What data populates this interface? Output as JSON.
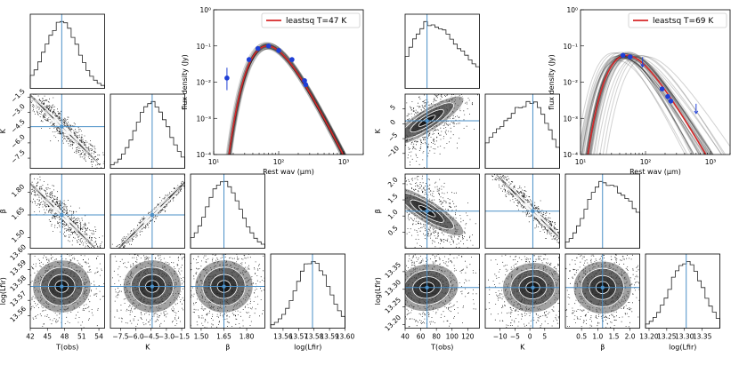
{
  "chart_data": [
    {
      "type": "corner",
      "panel": "left",
      "params": [
        "T(obs)",
        "K",
        "β",
        "log(Lfir)"
      ],
      "truths": [
        47.5,
        -4.4,
        1.65,
        13.579
      ],
      "ranges": [
        [
          42,
          55
        ],
        [
          -8.5,
          -1.2
        ],
        [
          1.43,
          1.92
        ],
        [
          13.552,
          13.6
        ]
      ],
      "ticks": [
        {
          "values": [
            42,
            45,
            48,
            51,
            54
          ],
          "labels": [
            "42",
            "45",
            "48",
            "51",
            "54"
          ]
        },
        {
          "values": [
            -7.5,
            -6.0,
            -4.5,
            -3.0,
            -1.5
          ],
          "labels": [
            "−7.5",
            "−6.0",
            "−4.5",
            "−3.0",
            "−1.5"
          ]
        },
        {
          "values": [
            1.5,
            1.65,
            1.8
          ],
          "labels": [
            "1.50",
            "1.65",
            "1.80"
          ]
        },
        {
          "values": [
            13.56,
            13.57,
            13.58,
            13.59,
            13.6
          ],
          "labels": [
            "13.56",
            "13.57",
            "13.58",
            "13.59",
            "13.60"
          ]
        }
      ],
      "correlations": {
        "1-0": -0.95,
        "2-0": -0.92,
        "2-1": 0.99,
        "3-0": 0.05,
        "3-1": 0.05,
        "3-2": 0.05
      },
      "histogram_skew": [
        0,
        0,
        0,
        0
      ]
    },
    {
      "type": "corner",
      "panel": "right",
      "params": [
        "T(obs)",
        "K",
        "β",
        "log(Lfir)"
      ],
      "truths": [
        68,
        1,
        1.15,
        13.305
      ],
      "ranges": [
        [
          40,
          135
        ],
        [
          -15,
          10
        ],
        [
          0.0,
          2.3
        ],
        [
          13.19,
          13.4
        ]
      ],
      "ticks": [
        {
          "values": [
            40,
            60,
            80,
            100,
            120
          ],
          "labels": [
            "40",
            "60",
            "80",
            "100",
            "120"
          ]
        },
        {
          "values": [
            -10,
            -5,
            0,
            5
          ],
          "labels": [
            "−10",
            "−5",
            "0",
            "5"
          ]
        },
        {
          "values": [
            0.5,
            1.0,
            1.5,
            2.0
          ],
          "labels": [
            "0.5",
            "1.0",
            "1.5",
            "2.0"
          ]
        },
        {
          "values": [
            13.2,
            13.25,
            13.3,
            13.35
          ],
          "labels": [
            "13.20",
            "13.25",
            "13.30",
            "13.35"
          ]
        }
      ],
      "ytick_overrides": {
        "1": {
          "values": [
            -10,
            -5,
            0,
            5
          ],
          "labels": [
            "−10",
            "−5",
            "0",
            "5"
          ]
        },
        "2": {
          "values": [
            0.5,
            1.0,
            1.5,
            2.0
          ],
          "labels": [
            "0.5",
            "1.0",
            "1.5",
            "2.0"
          ]
        },
        "3": {
          "values": [
            13.2,
            13.25,
            13.3,
            13.35
          ],
          "labels": [
            "13.20",
            "13.25",
            "13.30",
            "13.35"
          ]
        }
      },
      "correlations": {
        "1-0": 0.6,
        "2-0": -0.6,
        "2-1": -0.97,
        "3-0": 0.15,
        "3-1": 0.1,
        "3-2": 0.05
      },
      "histogram_skew": [
        1,
        -1,
        1,
        0
      ]
    },
    {
      "type": "line",
      "panel": "left-sed",
      "title": "",
      "xlabel": "Rest wav (μm)",
      "ylabel": "flux density (Jy)",
      "xscale": "log",
      "yscale": "log",
      "xlim": [
        10,
        2000
      ],
      "ylim": [
        0.0001,
        1
      ],
      "xticks": [
        {
          "v": 10,
          "l": "10¹"
        },
        {
          "v": 100,
          "l": "10²"
        },
        {
          "v": 1000,
          "l": "10³"
        }
      ],
      "yticks": [
        {
          "v": 0.0001,
          "l": "10⁻⁴"
        },
        {
          "v": 0.001,
          "l": "10⁻³"
        },
        {
          "v": 0.01,
          "l": "10⁻²"
        },
        {
          "v": 0.1,
          "l": "10⁻¹"
        },
        {
          "v": 1,
          "l": "10⁰"
        }
      ],
      "legend": {
        "label": "leastsq T=47 K",
        "color": "#d62728",
        "position": "top-right"
      },
      "model": {
        "T": 47,
        "beta": 1.65,
        "peak_wav": 70,
        "peak_flux": 0.1,
        "spread": 0.05
      },
      "points": [
        {
          "x": 16,
          "y": 0.013,
          "yerr_lo": 0.007,
          "yerr_hi": 0.012
        },
        {
          "x": 35,
          "y": 0.042
        },
        {
          "x": 48,
          "y": 0.085
        },
        {
          "x": 70,
          "y": 0.1
        },
        {
          "x": 100,
          "y": 0.075
        },
        {
          "x": 160,
          "y": 0.042
        },
        {
          "x": 250,
          "y": 0.011
        },
        {
          "x": 260,
          "y": 0.0085
        }
      ]
    },
    {
      "type": "line",
      "panel": "right-sed",
      "title": "",
      "xlabel": "Rest wav (μm)",
      "ylabel": "flux density (Jy)",
      "xscale": "log",
      "yscale": "log",
      "xlim": [
        10,
        2000
      ],
      "ylim": [
        0.0001,
        1
      ],
      "xticks": [
        {
          "v": 10,
          "l": "10¹"
        },
        {
          "v": 100,
          "l": "10²"
        },
        {
          "v": 1000,
          "l": "10³"
        }
      ],
      "yticks": [
        {
          "v": 0.0001,
          "l": "10⁻⁴"
        },
        {
          "v": 0.001,
          "l": "10⁻³"
        },
        {
          "v": 0.01,
          "l": "10⁻²"
        },
        {
          "v": 0.1,
          "l": "10⁻¹"
        },
        {
          "v": 1,
          "l": "10⁰"
        }
      ],
      "legend": {
        "label": "leastsq T=69 K",
        "color": "#d62728",
        "position": "top-right"
      },
      "model": {
        "T": 69,
        "beta": 1.15,
        "peak_wav": 50,
        "peak_flux": 0.055,
        "spread": 0.35
      },
      "points": [
        {
          "x": 45,
          "y": 0.055
        },
        {
          "x": 58,
          "y": 0.05
        },
        {
          "x": 90,
          "y": 0.035,
          "uplim": true
        },
        {
          "x": 180,
          "y": 0.0065
        },
        {
          "x": 220,
          "y": 0.004
        },
        {
          "x": 245,
          "y": 0.003
        },
        {
          "x": 600,
          "y": 0.0018,
          "uplim": true
        }
      ]
    }
  ]
}
